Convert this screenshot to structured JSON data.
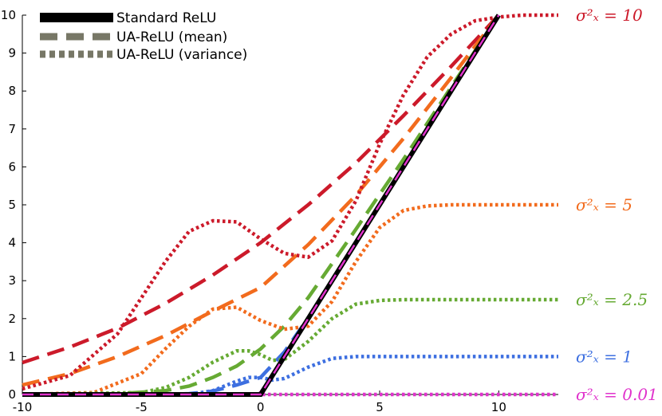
{
  "chart_data": {
    "type": "line",
    "title": "",
    "xlabel": "",
    "ylabel": "",
    "xlim": [
      -10,
      12.5
    ],
    "ylim": [
      0,
      10
    ],
    "x_ticks": [
      "-10",
      "-5",
      "0",
      "5",
      "10"
    ],
    "y_ticks": [
      "0",
      "1",
      "2",
      "3",
      "4",
      "5",
      "6",
      "7",
      "8",
      "9",
      "10"
    ],
    "grid": false,
    "legend_position": "top-left",
    "legend": [
      {
        "label": "Standard ReLU",
        "style": "solid",
        "color": "#000000"
      },
      {
        "label": "UA-ReLU (mean)",
        "style": "dashed",
        "color": "#777766"
      },
      {
        "label": "UA-ReLU (variance)",
        "style": "dotted",
        "color": "#777766"
      }
    ],
    "relu": {
      "x": [
        -10,
        0,
        10
      ],
      "y": [
        0,
        0,
        10
      ],
      "color": "#000000"
    },
    "mean_series": [
      {
        "color": "#cc1a2a",
        "x": [
          -10,
          -8,
          -6,
          -4,
          -2,
          0,
          2,
          4,
          6,
          8,
          10
        ],
        "y": [
          0.84,
          1.25,
          1.75,
          2.4,
          3.15,
          4.0,
          5.0,
          6.1,
          7.35,
          8.65,
          10.0
        ]
      },
      {
        "color": "#f26b1d",
        "x": [
          -10,
          -8,
          -6,
          -4,
          -2,
          0,
          2,
          4,
          6,
          8,
          10
        ],
        "y": [
          0.25,
          0.55,
          1.0,
          1.55,
          2.2,
          2.82,
          3.95,
          5.25,
          6.75,
          8.35,
          10.0
        ]
      },
      {
        "color": "#66aa33",
        "x": [
          -10,
          -6,
          -4,
          -3,
          -2,
          -1,
          0,
          1,
          2,
          3,
          4,
          6,
          8,
          10
        ],
        "y": [
          0,
          0.02,
          0.1,
          0.22,
          0.45,
          0.75,
          1.2,
          1.8,
          2.55,
          3.45,
          4.35,
          6.2,
          8.1,
          10.0
        ]
      },
      {
        "color": "#3d6fe0",
        "x": [
          -10,
          -4,
          -3,
          -2,
          -1,
          0,
          1,
          2,
          3,
          4,
          6,
          8,
          10
        ],
        "y": [
          0,
          0,
          0.02,
          0.09,
          0.25,
          0.45,
          1.12,
          2.02,
          3.0,
          4.0,
          6.0,
          8.0,
          10.0
        ]
      },
      {
        "color": "#e033cc",
        "x": [
          -10,
          -1,
          -0.4,
          0,
          0.4,
          1,
          2,
          4,
          6,
          8,
          10
        ],
        "y": [
          0,
          0,
          0.0,
          0.04,
          0.4,
          1.0,
          2.0,
          4.0,
          6.0,
          8.0,
          10.0
        ]
      }
    ],
    "variance_series": [
      {
        "color": "#cc1a2a",
        "label": "σ²ₓ = 10",
        "x": [
          -10,
          -8,
          -6,
          -4,
          -3,
          -2,
          -1,
          0,
          1,
          2,
          3,
          4,
          5,
          6,
          7,
          8,
          9,
          10,
          11,
          12.5
        ],
        "y": [
          0.15,
          0.5,
          1.6,
          3.5,
          4.3,
          4.58,
          4.55,
          4.1,
          3.72,
          3.62,
          4.05,
          5.1,
          6.6,
          7.9,
          8.9,
          9.5,
          9.85,
          9.95,
          10.0,
          10.0
        ]
      },
      {
        "color": "#f26b1d",
        "label": "σ²ₓ = 5",
        "x": [
          -10,
          -7,
          -5,
          -4,
          -3,
          -2,
          -1,
          0,
          1,
          2,
          3,
          4,
          5,
          6,
          7,
          8,
          10,
          12.5
        ],
        "y": [
          0,
          0.05,
          0.55,
          1.2,
          1.8,
          2.25,
          2.3,
          1.95,
          1.72,
          1.8,
          2.45,
          3.5,
          4.4,
          4.85,
          4.97,
          5.0,
          5.0,
          5.0
        ]
      },
      {
        "color": "#66aa33",
        "label": "σ²ₓ = 2.5",
        "x": [
          -10,
          -5,
          -4,
          -3,
          -2,
          -1,
          -0.5,
          0,
          0.5,
          1,
          2,
          3,
          4,
          5,
          6,
          8,
          12.5
        ],
        "y": [
          0,
          0.05,
          0.18,
          0.45,
          0.85,
          1.15,
          1.15,
          1.05,
          0.9,
          0.92,
          1.4,
          2.0,
          2.38,
          2.48,
          2.5,
          2.5,
          2.5
        ]
      },
      {
        "color": "#3d6fe0",
        "label": "σ²ₓ = 1",
        "x": [
          -10,
          -3,
          -2,
          -1,
          -0.5,
          0,
          0.5,
          1,
          2,
          3,
          4,
          6,
          12.5
        ],
        "y": [
          0,
          0,
          0.1,
          0.35,
          0.45,
          0.45,
          0.38,
          0.42,
          0.72,
          0.95,
          1.0,
          1.0,
          1.0
        ]
      },
      {
        "color": "#e033cc",
        "label": "σ²ₓ = 0.01",
        "x": [
          -10,
          12.5
        ],
        "y": [
          0,
          0
        ]
      }
    ]
  }
}
